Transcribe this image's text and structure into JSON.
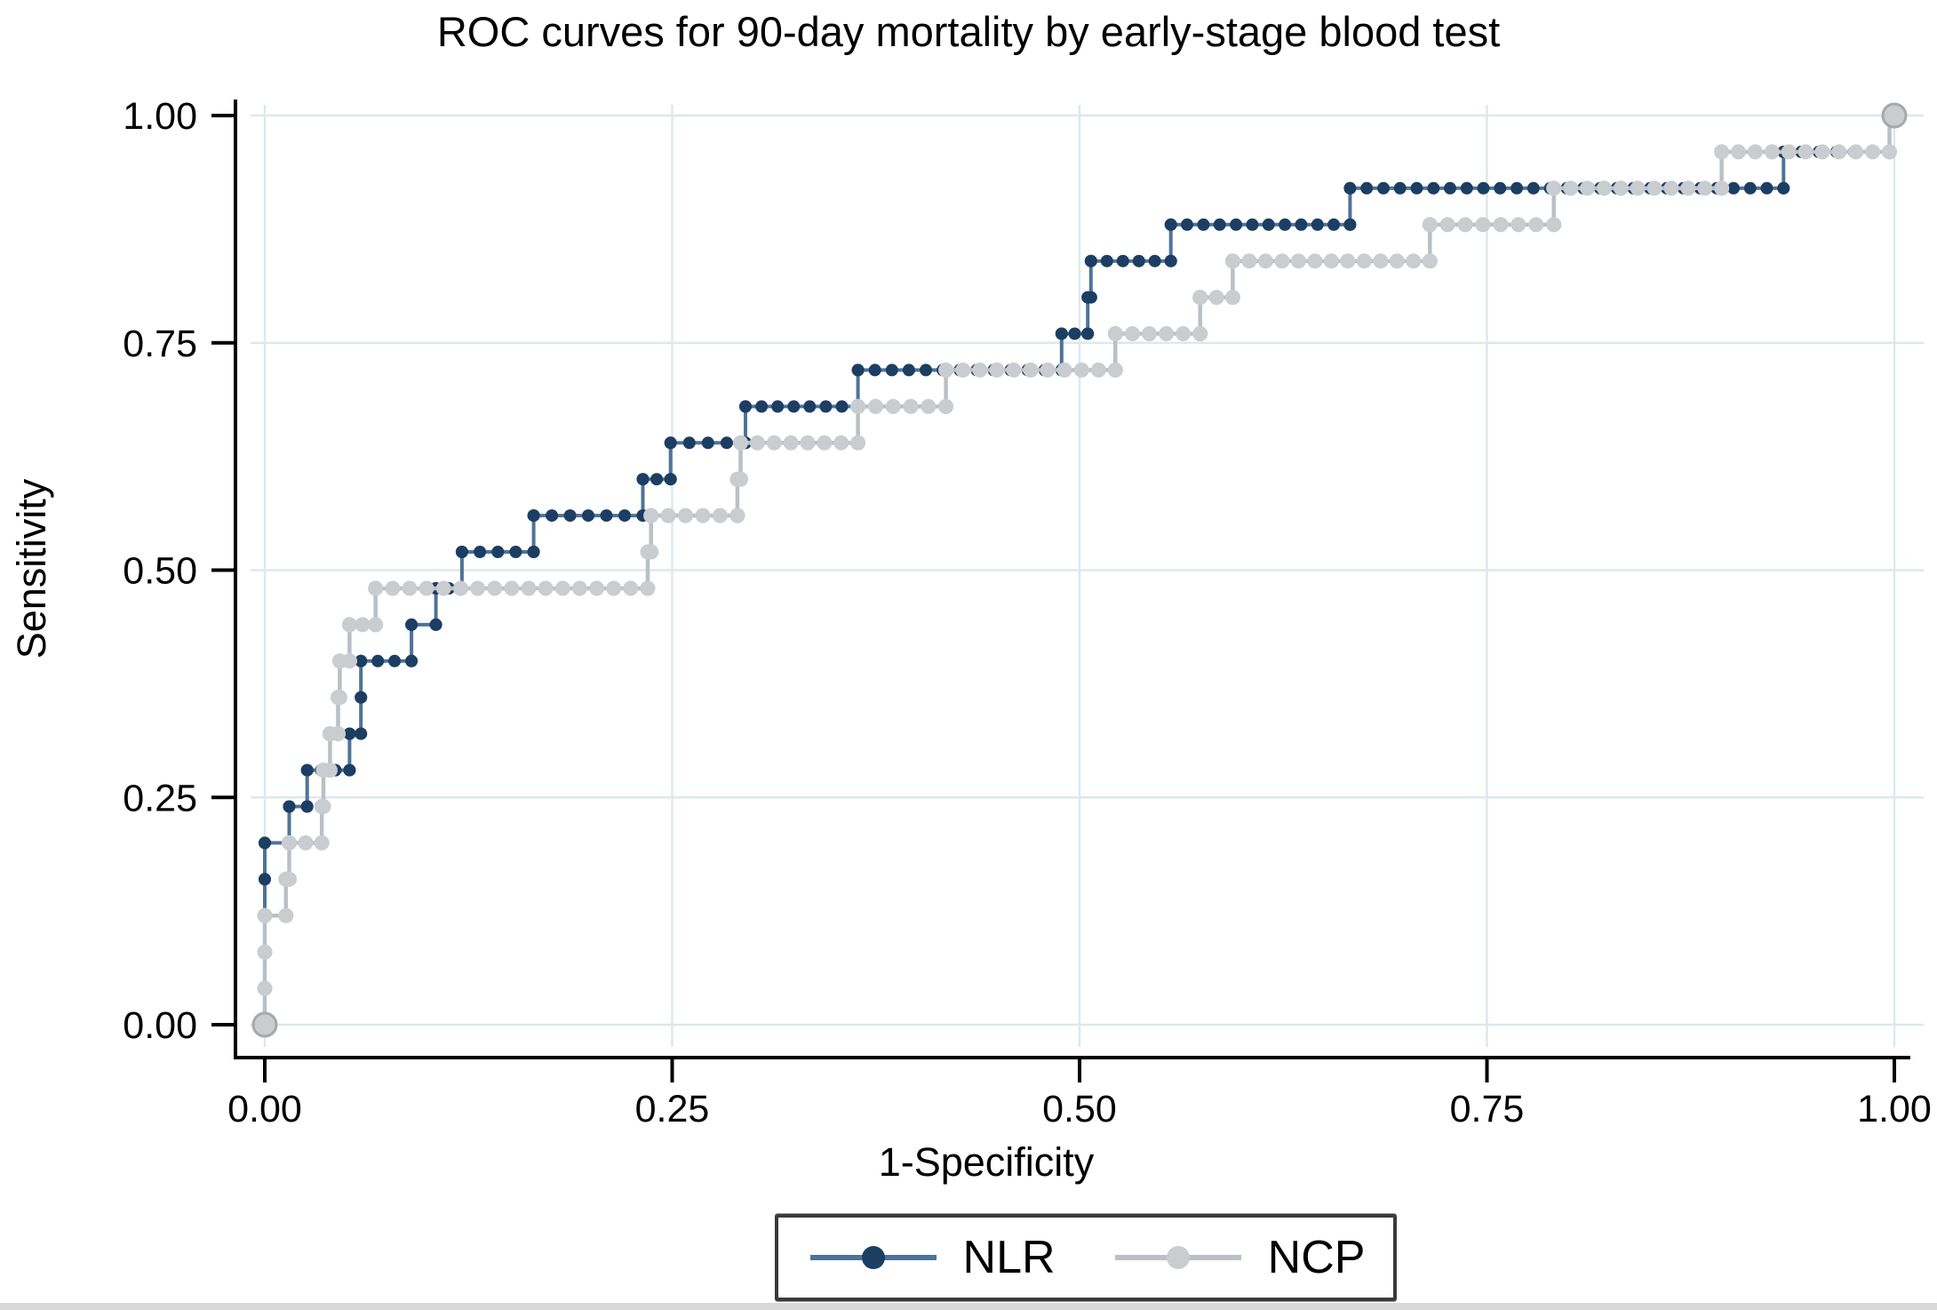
{
  "figure_title": "ROC curves for 90-day mortality by early-stage blood test",
  "colors": {
    "background": "#ffffff",
    "axis": "#000000",
    "grid": "#dce9ed",
    "tick_text": "#000000",
    "legend_border": "#3a3a3a",
    "bottom_strip": "#d9d9d9"
  },
  "chart_data": {
    "type": "line",
    "subtype": "roc-step-curves",
    "title": "ROC curves for 90-day mortality by early-stage blood test",
    "xlabel": "1-Specificity",
    "ylabel": "Sensitivity",
    "xlim": [
      0,
      1
    ],
    "ylim": [
      0,
      1
    ],
    "grid": true,
    "xticks": {
      "values": [
        0,
        0.25,
        0.5,
        0.75,
        1.0
      ],
      "labels": [
        "0.00",
        "0.25",
        "0.50",
        "0.75",
        "1.00"
      ]
    },
    "yticks": {
      "values": [
        0,
        0.25,
        0.5,
        0.75,
        1.0
      ],
      "labels": [
        "0.00",
        "0.25",
        "0.50",
        "0.75",
        "1.00"
      ]
    },
    "legend_position": "bottom-center",
    "series": [
      {
        "name": "NLR",
        "marker_color": "#1c3e63",
        "line_color": "#4e7398",
        "marker_radius": 7,
        "line_width": 4,
        "points": [
          [
            0,
            0
          ],
          [
            0,
            0.04
          ],
          [
            0,
            0.08
          ],
          [
            0,
            0.12
          ],
          [
            0,
            0.16
          ],
          [
            0,
            0.2
          ],
          [
            0.015,
            0.2
          ],
          [
            0.015,
            0.24
          ],
          [
            0.026,
            0.24
          ],
          [
            0.026,
            0.28
          ],
          [
            0.052,
            0.28
          ],
          [
            0.052,
            0.32
          ],
          [
            0.059,
            0.32
          ],
          [
            0.059,
            0.36
          ],
          [
            0.059,
            0.4
          ],
          [
            0.09,
            0.4
          ],
          [
            0.09,
            0.44
          ],
          [
            0.105,
            0.44
          ],
          [
            0.105,
            0.48
          ],
          [
            0.121,
            0.48
          ],
          [
            0.121,
            0.52
          ],
          [
            0.165,
            0.52
          ],
          [
            0.165,
            0.56
          ],
          [
            0.232,
            0.56
          ],
          [
            0.232,
            0.6
          ],
          [
            0.249,
            0.6
          ],
          [
            0.249,
            0.64
          ],
          [
            0.295,
            0.64
          ],
          [
            0.295,
            0.68
          ],
          [
            0.364,
            0.68
          ],
          [
            0.364,
            0.72
          ],
          [
            0.489,
            0.72
          ],
          [
            0.489,
            0.76
          ],
          [
            0.505,
            0.76
          ],
          [
            0.505,
            0.8
          ],
          [
            0.507,
            0.8
          ],
          [
            0.507,
            0.84
          ],
          [
            0.556,
            0.84
          ],
          [
            0.556,
            0.88
          ],
          [
            0.666,
            0.88
          ],
          [
            0.666,
            0.92
          ],
          [
            0.932,
            0.92
          ],
          [
            0.932,
            0.96
          ],
          [
            0.997,
            0.96
          ],
          [
            0.997,
            1.0
          ],
          [
            1.0,
            1.0
          ]
        ]
      },
      {
        "name": "NCP",
        "marker_color": "#c9cdd0",
        "line_color": "#b9c0c5",
        "marker_radius": 8.5,
        "line_width": 4.5,
        "end_marker_stroke": "#a3a9ad",
        "points": [
          [
            0,
            0
          ],
          [
            0,
            0.04
          ],
          [
            0,
            0.08
          ],
          [
            0,
            0.12
          ],
          [
            0.013,
            0.12
          ],
          [
            0.013,
            0.16
          ],
          [
            0.015,
            0.16
          ],
          [
            0.015,
            0.2
          ],
          [
            0.035,
            0.2
          ],
          [
            0.035,
            0.24
          ],
          [
            0.036,
            0.24
          ],
          [
            0.036,
            0.28
          ],
          [
            0.04,
            0.28
          ],
          [
            0.04,
            0.32
          ],
          [
            0.045,
            0.32
          ],
          [
            0.045,
            0.36
          ],
          [
            0.046,
            0.36
          ],
          [
            0.046,
            0.4
          ],
          [
            0.052,
            0.4
          ],
          [
            0.052,
            0.44
          ],
          [
            0.068,
            0.44
          ],
          [
            0.068,
            0.48
          ],
          [
            0.235,
            0.48
          ],
          [
            0.235,
            0.52
          ],
          [
            0.237,
            0.52
          ],
          [
            0.237,
            0.56
          ],
          [
            0.29,
            0.56
          ],
          [
            0.29,
            0.6
          ],
          [
            0.292,
            0.6
          ],
          [
            0.292,
            0.64
          ],
          [
            0.364,
            0.64
          ],
          [
            0.364,
            0.68
          ],
          [
            0.418,
            0.68
          ],
          [
            0.418,
            0.72
          ],
          [
            0.522,
            0.72
          ],
          [
            0.522,
            0.76
          ],
          [
            0.574,
            0.76
          ],
          [
            0.574,
            0.8
          ],
          [
            0.594,
            0.8
          ],
          [
            0.594,
            0.84
          ],
          [
            0.715,
            0.84
          ],
          [
            0.715,
            0.88
          ],
          [
            0.791,
            0.88
          ],
          [
            0.791,
            0.92
          ],
          [
            0.894,
            0.92
          ],
          [
            0.894,
            0.96
          ],
          [
            0.997,
            0.96
          ],
          [
            0.997,
            1.0
          ],
          [
            1.0,
            1.0
          ]
        ]
      }
    ]
  },
  "legend": {
    "entries": [
      {
        "label": "NLR"
      },
      {
        "label": "NCP"
      }
    ]
  }
}
